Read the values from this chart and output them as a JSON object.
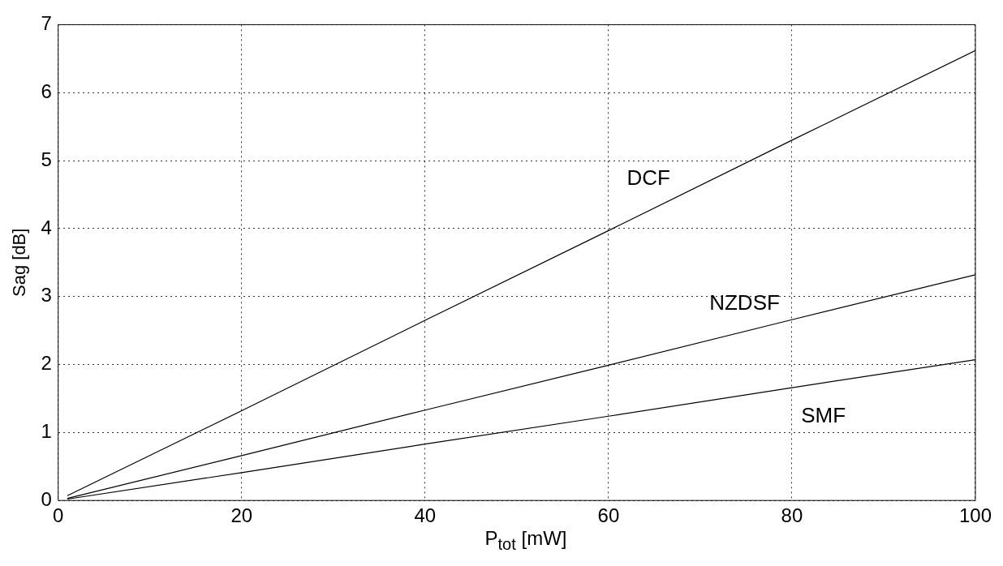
{
  "chart_data": {
    "type": "line",
    "xlabel": "P$_{tot}$ [mW]",
    "ylabel": "Sag [dB]",
    "xlim": [
      0,
      100
    ],
    "xticks": [
      0,
      20,
      40,
      60,
      80,
      100
    ],
    "ylim": [
      0,
      7
    ],
    "yticks": [
      0,
      1,
      2,
      3,
      4,
      5,
      6,
      7
    ],
    "grid": true,
    "legend": false,
    "marker": "none",
    "line_style": "solid",
    "series": [
      {
        "name": "DCF",
        "color": "#000000",
        "x": [
          1,
          20,
          40,
          60,
          80,
          100
        ],
        "values": [
          0.07,
          1.32,
          2.65,
          3.97,
          5.3,
          6.62
        ]
      },
      {
        "name": "NZDSF",
        "color": "#000000",
        "x": [
          1,
          20,
          40,
          60,
          80,
          100
        ],
        "values": [
          0.03,
          0.66,
          1.33,
          1.99,
          2.66,
          3.32
        ]
      },
      {
        "name": "SMF",
        "color": "#000000",
        "x": [
          1,
          20,
          40,
          60,
          80,
          100
        ],
        "values": [
          0.02,
          0.41,
          0.83,
          1.24,
          1.66,
          2.07
        ]
      }
    ]
  }
}
